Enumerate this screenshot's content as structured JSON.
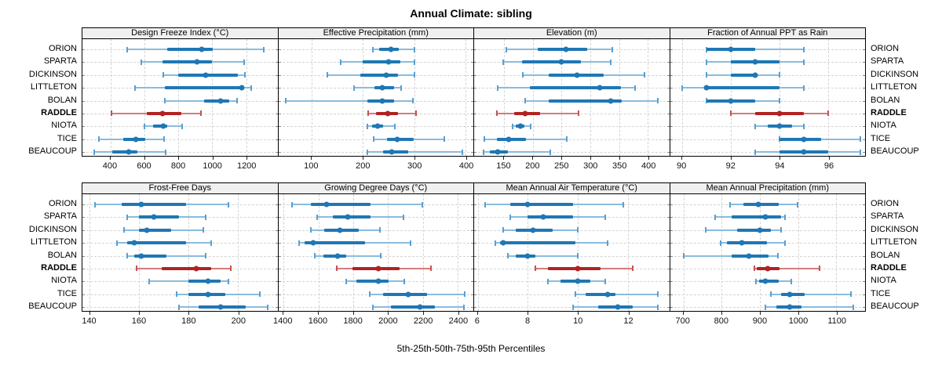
{
  "title": "Annual Climate: sibling",
  "caption": "5th-25th-50th-75th-95th Percentiles",
  "sites": [
    "ORION",
    "SPARTA",
    "DICKINSON",
    "LITTLETON",
    "BOLAN",
    "RADDLE",
    "NIOTA",
    "TICE",
    "BEAUCOUP"
  ],
  "highlight_site": "RADDLE",
  "colors": {
    "series": "#1f77b4",
    "series_light": "#8abcdd",
    "series_cap": "#5a9fd0",
    "highlight": "#b22222",
    "highlight_light": "#d37c7c",
    "highlight_cap": "#c25454",
    "grid": "#d4d4d4",
    "strip_bg": "#f0f0f0",
    "border": "#000000"
  },
  "layout": {
    "nrow": 2,
    "ncol": 4,
    "rows": [
      [
        0,
        1,
        2,
        3
      ],
      [
        4,
        5,
        6,
        7
      ]
    ]
  },
  "chart_data": {
    "type": "dot-interval",
    "percentiles": [
      "5th",
      "25th",
      "50th",
      "75th",
      "95th"
    ],
    "legend_position": "none",
    "grid": "dashed-both",
    "panels": [
      {
        "title": "Design Freeze Index (°C)",
        "xlim": [
          235,
          1385
        ],
        "ticks": [
          400,
          600,
          800,
          1000,
          1200
        ],
        "values": [
          [
            500,
            735,
            940,
            1005,
            1305
          ],
          [
            580,
            705,
            910,
            1000,
            1190
          ],
          [
            710,
            800,
            960,
            1150,
            1195
          ],
          [
            545,
            720,
            1175,
            1190,
            1230
          ],
          [
            720,
            950,
            1050,
            1100,
            1145
          ],
          [
            405,
            615,
            705,
            820,
            935
          ],
          [
            600,
            650,
            710,
            735,
            825
          ],
          [
            330,
            475,
            550,
            605,
            715
          ],
          [
            305,
            410,
            510,
            560,
            725
          ]
        ]
      },
      {
        "title": "Effective Precipitation (mm)",
        "xlim": [
          35,
          415
        ],
        "ticks": [
          100,
          200,
          300,
          400
        ],
        "values": [
          [
            220,
            231,
            255,
            270,
            300
          ],
          [
            157,
            200,
            250,
            273,
            300
          ],
          [
            130,
            195,
            246,
            268,
            300
          ],
          [
            182,
            222,
            238,
            260,
            274
          ],
          [
            50,
            208,
            237,
            260,
            297
          ],
          [
            210,
            226,
            248,
            268,
            303
          ],
          [
            208,
            218,
            229,
            239,
            262
          ],
          [
            221,
            247,
            266,
            299,
            359
          ],
          [
            209,
            239,
            256,
            288,
            393
          ]
        ]
      },
      {
        "title": "Elevation (m)",
        "xlim": [
          98,
          437
        ],
        "ticks": [
          150,
          200,
          250,
          300,
          350,
          400
        ],
        "values": [
          [
            154,
            209,
            258,
            294,
            338
          ],
          [
            149,
            181,
            249,
            284,
            336
          ],
          [
            183,
            227,
            277,
            323,
            394
          ],
          [
            139,
            195,
            316,
            353,
            378
          ],
          [
            186,
            227,
            335,
            355,
            417
          ],
          [
            138,
            167,
            186,
            213,
            280
          ],
          [
            165,
            170,
            178,
            186,
            196
          ],
          [
            116,
            138,
            158,
            188,
            259
          ],
          [
            115,
            125,
            139,
            157,
            231
          ]
        ]
      },
      {
        "title": "Fraction of Annual PPT as Rain",
        "xlim": [
          89.5,
          97.5
        ],
        "ticks": [
          90,
          92,
          94,
          96
        ],
        "values": [
          [
            91,
            91,
            92,
            93,
            95
          ],
          [
            91,
            92,
            93,
            94,
            95
          ],
          [
            91,
            92,
            93,
            93,
            94
          ],
          [
            90,
            91,
            91,
            94,
            95
          ],
          [
            91,
            91,
            92,
            93,
            94
          ],
          [
            92,
            93,
            94,
            95,
            96
          ],
          [
            93,
            93.5,
            94,
            94.5,
            95
          ],
          [
            94,
            94,
            95,
            95.7,
            97.3
          ],
          [
            93,
            94,
            95,
            96,
            97.3
          ]
        ]
      },
      {
        "title": "Frost-Free Days",
        "xlim": [
          137,
          216
        ],
        "ticks": [
          140,
          160,
          180,
          200
        ],
        "values": [
          [
            142,
            153,
            161,
            179,
            196
          ],
          [
            155,
            160,
            166,
            176,
            187
          ],
          [
            154,
            160,
            163,
            173,
            186
          ],
          [
            151,
            155,
            158,
            179,
            189
          ],
          [
            155,
            158,
            161,
            171,
            187
          ],
          [
            159,
            169,
            183,
            189,
            197
          ],
          [
            164,
            180,
            188,
            193,
            196
          ],
          [
            175,
            180,
            188,
            195,
            209
          ],
          [
            176,
            184,
            193,
            203,
            212
          ]
        ]
      },
      {
        "title": "Growing Degree Days (°C)",
        "xlim": [
          1370,
          2490
        ],
        "ticks": [
          1400,
          1600,
          1800,
          2000,
          2200,
          2400
        ],
        "values": [
          [
            1450,
            1555,
            1645,
            1900,
            2195
          ],
          [
            1595,
            1685,
            1770,
            1900,
            2090
          ],
          [
            1555,
            1635,
            1725,
            1830,
            1955
          ],
          [
            1490,
            1520,
            1570,
            1870,
            2130
          ],
          [
            1580,
            1630,
            1710,
            1760,
            1960
          ],
          [
            1705,
            1795,
            1945,
            2065,
            2245
          ],
          [
            1760,
            1820,
            1945,
            2005,
            2095
          ],
          [
            1895,
            1970,
            2115,
            2225,
            2440
          ],
          [
            1915,
            2015,
            2185,
            2270,
            2435
          ]
        ]
      },
      {
        "title": "Mean Annual Air Temperature (°C)",
        "xlim": [
          5.85,
          13.65
        ],
        "ticks": [
          6,
          8,
          10,
          12
        ],
        "values": [
          [
            6.3,
            7.3,
            8.0,
            9.8,
            11.8
          ],
          [
            7.3,
            8.0,
            8.6,
            9.8,
            11.1
          ],
          [
            7.0,
            7.5,
            8.2,
            9.0,
            10.0
          ],
          [
            6.7,
            6.9,
            7.0,
            9.9,
            11.2
          ],
          [
            7.2,
            7.5,
            8.0,
            8.3,
            10.0
          ],
          [
            8.3,
            8.8,
            10.0,
            10.9,
            12.2
          ],
          [
            8.8,
            9.3,
            10.0,
            10.5,
            11.1
          ],
          [
            9.9,
            10.3,
            11.2,
            11.5,
            13.2
          ],
          [
            9.8,
            10.8,
            11.6,
            12.2,
            13.2
          ]
        ]
      },
      {
        "title": "Mean Annual Precipitation (mm)",
        "xlim": [
          665,
          1175
        ],
        "ticks": [
          700,
          800,
          900,
          1000,
          1100
        ],
        "values": [
          [
            823,
            857,
            895,
            949,
            999
          ],
          [
            783,
            827,
            914,
            956,
            966
          ],
          [
            758,
            840,
            899,
            928,
            955
          ],
          [
            797,
            813,
            853,
            919,
            966
          ],
          [
            701,
            827,
            872,
            922,
            948
          ],
          [
            885,
            892,
            921,
            951,
            1056
          ],
          [
            890,
            897,
            914,
            949,
            983
          ],
          [
            929,
            956,
            978,
            1017,
            1138
          ],
          [
            914,
            943,
            978,
            1009,
            1145
          ]
        ]
      }
    ]
  }
}
